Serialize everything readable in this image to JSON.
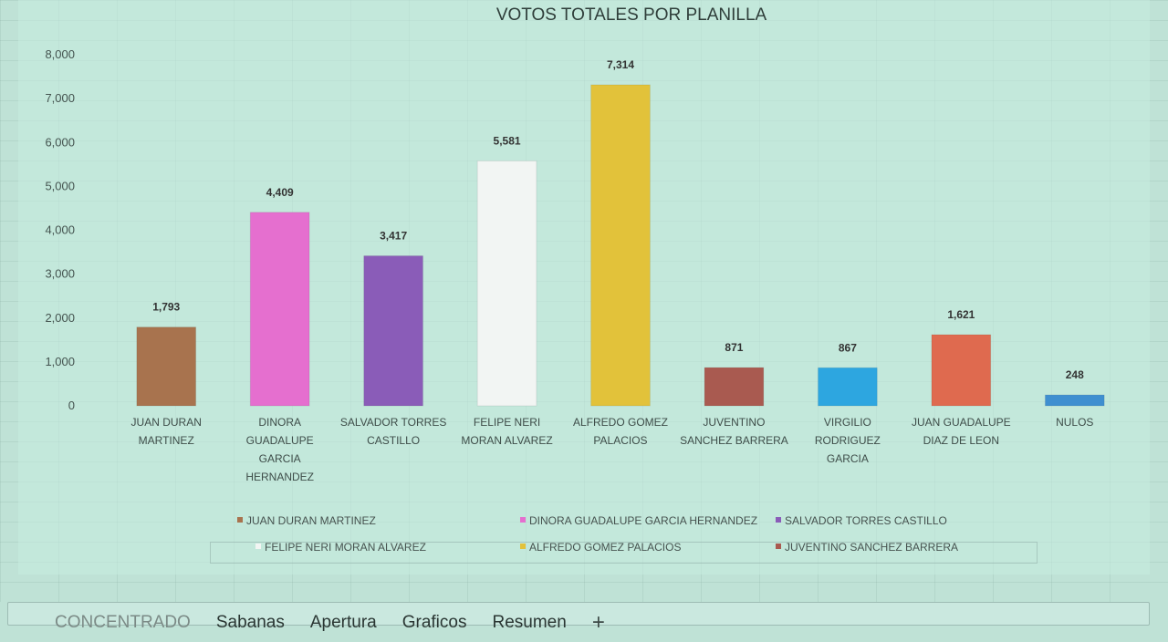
{
  "chart_data": {
    "type": "bar",
    "title": "VOTOS TOTALES POR PLANILLA",
    "categories": [
      [
        "JUAN DURAN",
        "MARTINEZ"
      ],
      [
        "DINORA",
        "GUADALUPE",
        "GARCIA",
        "HERNANDEZ"
      ],
      [
        "SALVADOR TORRES",
        "CASTILLO"
      ],
      [
        "FELIPE NERI",
        "MORAN ALVAREZ"
      ],
      [
        "ALFREDO GOMEZ",
        "PALACIOS"
      ],
      [
        "JUVENTINO",
        "SANCHEZ BARRERA"
      ],
      [
        "VIRGILIO",
        "RODRIGUEZ",
        "GARCIA"
      ],
      [
        "JUAN GUADALUPE",
        "DIAZ DE LEON"
      ],
      [
        "NULOS"
      ]
    ],
    "values": [
      1793,
      4409,
      3417,
      5581,
      7314,
      871,
      867,
      1621,
      248
    ],
    "value_labels": [
      "1,793",
      "4,409",
      "3,417",
      "5,581",
      "7,314",
      "871",
      "867",
      "1,621",
      "248"
    ],
    "colors": [
      "#a8734e",
      "#e56fcf",
      "#8a5cb8",
      "#f2f5f3",
      "#e2c23a",
      "#a95a50",
      "#2da6e0",
      "#df6a4f",
      "#3f8fd0"
    ],
    "ylim": [
      0,
      8000
    ],
    "yticks": [
      "0",
      "1,000",
      "2,000",
      "3,000",
      "4,000",
      "5,000",
      "6,000",
      "7,000",
      "8,000"
    ],
    "ytick_values": [
      0,
      1000,
      2000,
      3000,
      4000,
      5000,
      6000,
      7000,
      8000
    ],
    "grid": false,
    "legend_placement": "bottom",
    "legend": [
      {
        "label": "JUAN DURAN MARTINEZ",
        "color": "#a8734e",
        "row": 0
      },
      {
        "label": "DINORA GUADALUPE GARCIA HERNANDEZ",
        "color": "#e56fcf",
        "row": 0
      },
      {
        "label": "SALVADOR TORRES CASTILLO",
        "color": "#8a5cb8",
        "row": 0
      },
      {
        "label": "FELIPE NERI MORAN ALVAREZ",
        "color": "#f2f5f3",
        "row": 1
      },
      {
        "label": "ALFREDO GOMEZ PALACIOS",
        "color": "#e2c23a",
        "row": 1
      },
      {
        "label": "JUVENTINO SANCHEZ BARRERA",
        "color": "#a95a50",
        "row": 1
      }
    ]
  },
  "sheet_tabs": {
    "tabs": [
      "CONCENTRADO",
      "Sabanas",
      "Apertura",
      "Graficos",
      "Resumen"
    ],
    "add_label": "+"
  }
}
